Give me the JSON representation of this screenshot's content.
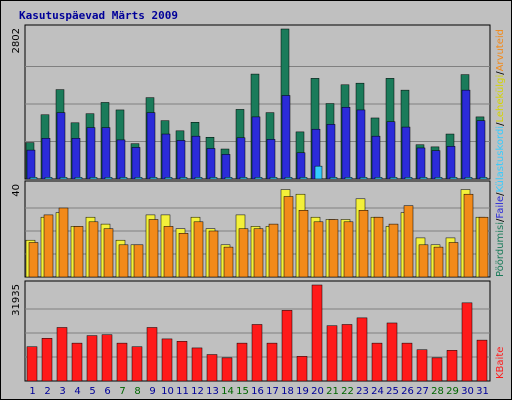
{
  "title": "Kasutuspäevad Märts 2009",
  "colors": {
    "background": "#c0c0c0",
    "panel_border": "#000000",
    "grid": "#808080",
    "weekday_label": "#000099",
    "weekend_label": "#006600",
    "pohiku": "#1a7b5a",
    "kulastuskorrad": "#2b2bd9",
    "failid": "#33ccff",
    "leheklikid": "#f3f03a",
    "arvutid": "#f28a1a",
    "kbaidid": "#ff1a1a"
  },
  "legend": {
    "top": [
      {
        "text": "Pöördumisi",
        "color": "#1a7b5a"
      },
      {
        "text": "/",
        "color": "#000000"
      },
      {
        "text": "Faile",
        "color": "#2b2bd9"
      },
      {
        "text": "/",
        "color": "#000000"
      },
      {
        "text": "Külastuskordi",
        "color": "#33ccff"
      },
      {
        "text": "/",
        "color": "#000000"
      },
      {
        "text": "Lehekülgi",
        "color": "#d4d400"
      },
      {
        "text": "/",
        "color": "#000000"
      },
      {
        "text": "Arvuteid",
        "color": "#f28a1a"
      }
    ],
    "bottom": [
      {
        "text": "KBaite",
        "color": "#ff1a1a"
      }
    ]
  },
  "chart_data": [
    {
      "type": "bar",
      "panel": "top",
      "ymax_label": "2802",
      "ylim": [
        0,
        2802
      ],
      "grid": true,
      "categories": [
        "1",
        "2",
        "3",
        "4",
        "5",
        "6",
        "7",
        "8",
        "9",
        "10",
        "11",
        "12",
        "13",
        "14",
        "15",
        "16",
        "17",
        "18",
        "19",
        "20",
        "21",
        "22",
        "23",
        "24",
        "25",
        "26",
        "27",
        "28",
        "29",
        "30",
        "31"
      ],
      "weekend": [
        false,
        false,
        false,
        false,
        false,
        false,
        true,
        true,
        false,
        false,
        false,
        false,
        false,
        true,
        true,
        false,
        false,
        false,
        false,
        false,
        true,
        true,
        false,
        false,
        false,
        false,
        false,
        true,
        true,
        false,
        false
      ],
      "series": [
        {
          "name": "Pöördumisi",
          "values": [
            680,
            1200,
            1670,
            1050,
            1220,
            1430,
            1290,
            660,
            1520,
            1090,
            900,
            1060,
            780,
            560,
            1300,
            1960,
            1240,
            2802,
            880,
            1880,
            1410,
            1760,
            1790,
            1140,
            1880,
            1660,
            640,
            600,
            840,
            1950,
            1160
          ]
        },
        {
          "name": "Faile",
          "values": [
            540,
            760,
            1240,
            760,
            960,
            960,
            730,
            590,
            1240,
            840,
            720,
            800,
            570,
            460,
            770,
            1160,
            740,
            1560,
            490,
            930,
            1020,
            1340,
            1290,
            800,
            1070,
            970,
            580,
            530,
            610,
            1660,
            1090
          ]
        },
        {
          "name": "Külastuskordi",
          "values": [
            30,
            30,
            30,
            30,
            30,
            30,
            30,
            30,
            30,
            30,
            30,
            30,
            30,
            30,
            30,
            30,
            30,
            30,
            30,
            240,
            30,
            30,
            30,
            30,
            30,
            30,
            30,
            30,
            30,
            30,
            30
          ]
        }
      ]
    },
    {
      "type": "bar",
      "panel": "middle",
      "ymax_label": "40",
      "ylim": [
        0,
        40
      ],
      "grid": true,
      "categories": [
        "1",
        "2",
        "3",
        "4",
        "5",
        "6",
        "7",
        "8",
        "9",
        "10",
        "11",
        "12",
        "13",
        "14",
        "15",
        "16",
        "17",
        "18",
        "19",
        "20",
        "21",
        "22",
        "23",
        "24",
        "25",
        "26",
        "27",
        "28",
        "29",
        "30",
        "31"
      ],
      "series": [
        {
          "name": "Lehekülgi",
          "values": [
            16,
            26,
            28,
            22,
            26,
            23,
            16,
            14,
            27,
            27,
            21,
            26,
            21,
            14,
            27,
            22,
            22,
            38,
            36,
            26,
            25,
            25,
            34,
            26,
            22,
            28,
            17,
            14,
            17,
            38,
            26
          ]
        },
        {
          "name": "Arvuteid",
          "values": [
            15,
            27,
            30,
            22,
            24,
            21,
            14,
            14,
            25,
            22,
            19,
            24,
            20,
            13,
            21,
            21,
            23,
            35,
            29,
            24,
            25,
            24,
            29,
            26,
            23,
            31,
            14,
            13,
            15,
            36,
            26
          ]
        }
      ]
    },
    {
      "type": "bar",
      "panel": "bottom",
      "ymax_label": "31935",
      "ylim": [
        0,
        31935
      ],
      "grid": true,
      "categories": [
        "1",
        "2",
        "3",
        "4",
        "5",
        "6",
        "7",
        "8",
        "9",
        "10",
        "11",
        "12",
        "13",
        "14",
        "15",
        "16",
        "17",
        "18",
        "19",
        "20",
        "21",
        "22",
        "23",
        "24",
        "25",
        "26",
        "27",
        "28",
        "29",
        "30",
        "31"
      ],
      "series": [
        {
          "name": "KBaite",
          "values": [
            11400,
            14200,
            17800,
            12600,
            15100,
            15400,
            12600,
            11400,
            17800,
            14000,
            13200,
            11000,
            8800,
            7700,
            12600,
            18800,
            12600,
            23500,
            8200,
            31935,
            18400,
            18800,
            21000,
            12600,
            19300,
            12600,
            10400,
            7700,
            10200,
            26000,
            13600
          ]
        }
      ]
    }
  ]
}
